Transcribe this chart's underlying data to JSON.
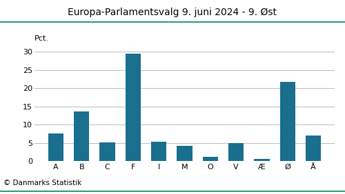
{
  "title": "Europa-Parlamentsvalg 9. juni 2024 - 9. Øst",
  "categories": [
    "A",
    "B",
    "C",
    "F",
    "I",
    "M",
    "O",
    "V",
    "Æ",
    "Ø",
    "Å"
  ],
  "values": [
    7.5,
    13.7,
    5.1,
    29.5,
    5.3,
    4.1,
    1.2,
    5.0,
    0.5,
    21.7,
    7.1
  ],
  "bar_color": "#1a6e8e",
  "ylabel": "Pct.",
  "ylim": [
    0,
    32
  ],
  "yticks": [
    0,
    5,
    10,
    15,
    20,
    25,
    30
  ],
  "footer": "© Danmarks Statistik",
  "title_fontsize": 10,
  "label_fontsize": 8,
  "footer_fontsize": 7.5,
  "background_color": "#ffffff",
  "title_line_color": "#008860",
  "grid_color": "#bbbbbb",
  "bottom_line_color": "#008860"
}
